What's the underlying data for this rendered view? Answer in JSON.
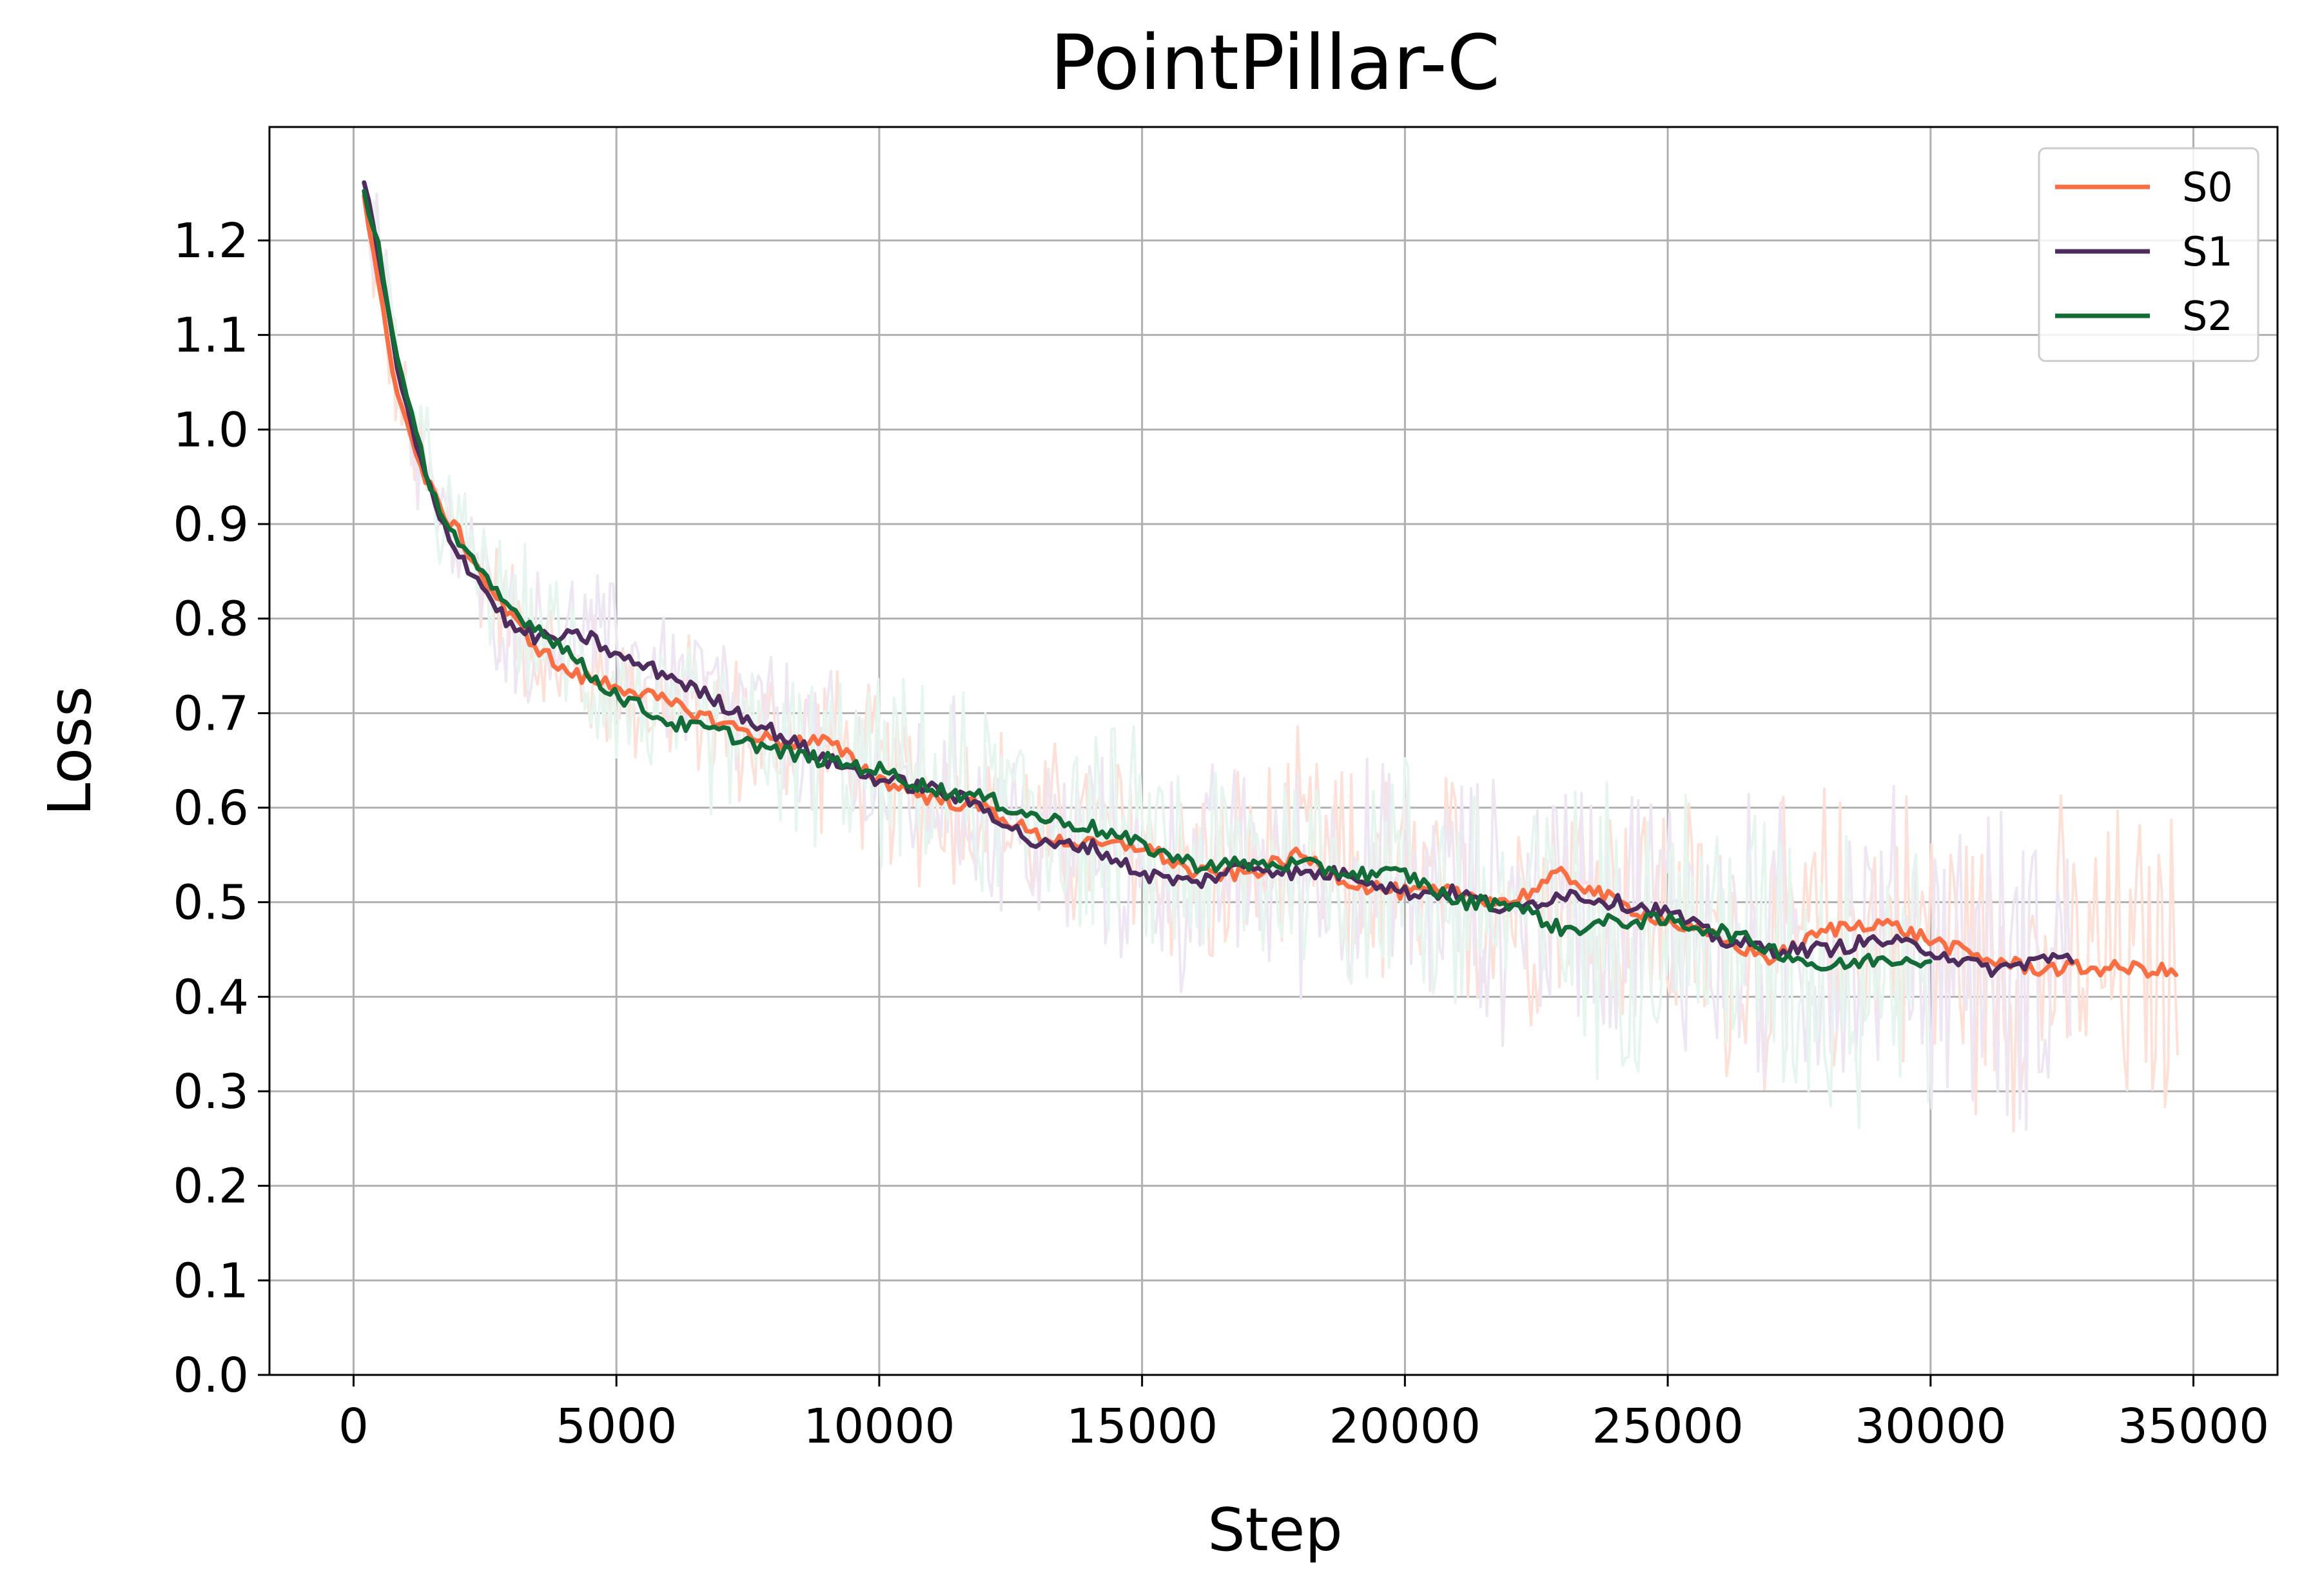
{
  "chart_data": {
    "type": "line",
    "title": "PointPillar-C",
    "xlabel": "Step",
    "ylabel": "Loss",
    "xlim": [
      -1600,
      36600
    ],
    "ylim": [
      0.0,
      1.32
    ],
    "x_ticks": [
      0,
      5000,
      10000,
      15000,
      20000,
      25000,
      30000,
      35000
    ],
    "x_tick_labels": [
      "0",
      "5000",
      "10000",
      "15000",
      "20000",
      "25000",
      "30000",
      "35000"
    ],
    "y_ticks": [
      0.0,
      0.1,
      0.2,
      0.3,
      0.4,
      0.5,
      0.6,
      0.7,
      0.8,
      0.9,
      1.0,
      1.1,
      1.2
    ],
    "y_tick_labels": [
      "0.0",
      "0.1",
      "0.2",
      "0.3",
      "0.4",
      "0.5",
      "0.6",
      "0.7",
      "0.8",
      "0.9",
      "1.0",
      "1.1",
      "1.2"
    ],
    "grid": true,
    "legend_position": "top-right",
    "series": [
      {
        "name": "S0",
        "color": "#f96e43",
        "raw_color": "#fde1d8",
        "x": [
          200,
          500,
          800,
          1200,
          1600,
          2000,
          2500,
          3000,
          3500,
          4000,
          4500,
          5000,
          6000,
          7000,
          8000,
          9000,
          10000,
          11000,
          12000,
          13000,
          14000,
          15000,
          16000,
          17000,
          18000,
          19000,
          20000,
          21000,
          22000,
          23000,
          24000,
          25000,
          26000,
          27000,
          28000,
          29000,
          30000,
          31000,
          32000,
          33000,
          34000,
          34700
        ],
        "values": [
          1.25,
          1.14,
          1.05,
          0.97,
          0.92,
          0.89,
          0.84,
          0.8,
          0.77,
          0.745,
          0.735,
          0.73,
          0.71,
          0.69,
          0.67,
          0.67,
          0.63,
          0.61,
          0.6,
          0.57,
          0.56,
          0.56,
          0.53,
          0.53,
          0.55,
          0.52,
          0.51,
          0.51,
          0.5,
          0.53,
          0.5,
          0.48,
          0.46,
          0.44,
          0.47,
          0.48,
          0.46,
          0.44,
          0.43,
          0.43,
          0.43,
          0.425
        ]
      },
      {
        "name": "S1",
        "color": "#4f2c5e",
        "raw_color": "#efe6f4",
        "x": [
          200,
          500,
          800,
          1200,
          1600,
          2000,
          2500,
          3000,
          3500,
          4000,
          4500,
          5000,
          6000,
          7000,
          8000,
          9000,
          10000,
          11000,
          12000,
          13000,
          14000,
          15000,
          16000,
          17000,
          18000,
          19000,
          20000,
          21000,
          22000,
          23000,
          24000,
          25000,
          26000,
          27000,
          28000,
          29000,
          30000,
          30500,
          31000,
          31500,
          32000,
          32700
        ],
        "values": [
          1.26,
          1.18,
          1.07,
          0.98,
          0.91,
          0.87,
          0.83,
          0.79,
          0.78,
          0.78,
          0.78,
          0.76,
          0.74,
          0.71,
          0.68,
          0.65,
          0.63,
          0.62,
          0.6,
          0.56,
          0.56,
          0.53,
          0.52,
          0.54,
          0.53,
          0.53,
          0.51,
          0.51,
          0.49,
          0.51,
          0.5,
          0.49,
          0.46,
          0.45,
          0.45,
          0.46,
          0.45,
          0.44,
          0.43,
          0.43,
          0.44,
          0.44
        ]
      },
      {
        "name": "S2",
        "color": "#136b37",
        "raw_color": "#e6f6ee",
        "x": [
          200,
          500,
          800,
          1200,
          1600,
          2000,
          2500,
          3000,
          3500,
          4000,
          4500,
          5000,
          6000,
          7000,
          8000,
          9000,
          10000,
          11000,
          12000,
          13000,
          14000,
          15000,
          16000,
          17000,
          18000,
          19000,
          20000,
          21000,
          22000,
          23000,
          24000,
          25000,
          26000,
          27000,
          28000,
          29000,
          30000
        ],
        "values": [
          1.25,
          1.19,
          1.08,
          0.99,
          0.92,
          0.88,
          0.84,
          0.81,
          0.79,
          0.77,
          0.74,
          0.72,
          0.69,
          0.68,
          0.66,
          0.65,
          0.64,
          0.62,
          0.61,
          0.59,
          0.58,
          0.56,
          0.54,
          0.54,
          0.54,
          0.53,
          0.53,
          0.5,
          0.5,
          0.47,
          0.48,
          0.48,
          0.47,
          0.45,
          0.43,
          0.44,
          0.44
        ]
      }
    ]
  }
}
